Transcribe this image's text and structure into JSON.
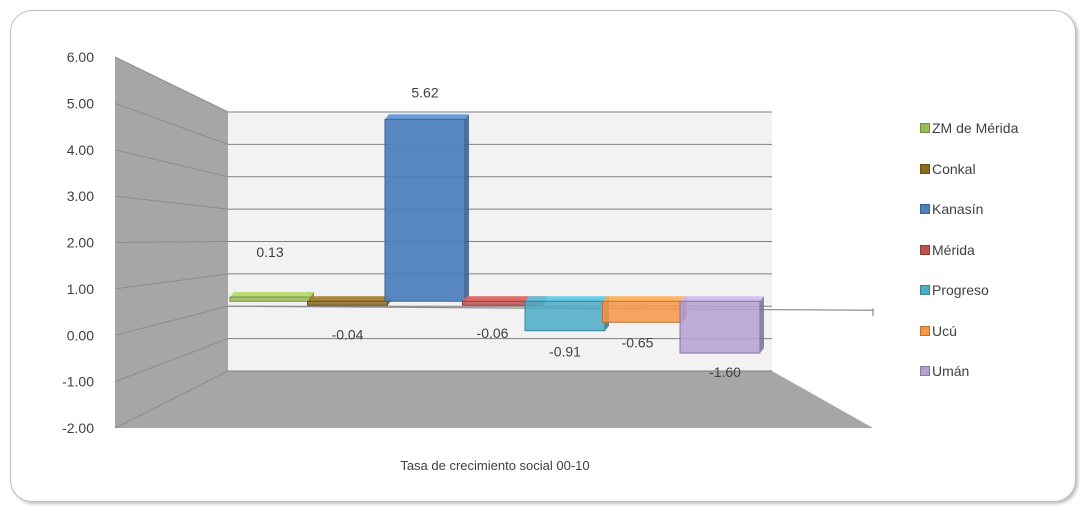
{
  "chart_data": {
    "type": "bar",
    "style": "3d-clustered-column",
    "xlabel": "Tasa de crecimiento social 00-10",
    "ylabel": "",
    "ylim": [
      -2,
      6
    ],
    "ytick_step": 1,
    "ytick_labels": [
      "6.00",
      "5.00",
      "4.00",
      "3.00",
      "2.00",
      "1.00",
      "0.00",
      "-1.00",
      "-2.00"
    ],
    "grid": true,
    "legend_position": "right",
    "series": [
      {
        "name": "ZM de Mérida",
        "value": 0.13,
        "label": "0.13",
        "color": "#9bbb59"
      },
      {
        "name": "Conkal",
        "value": -0.04,
        "label": "-0.04",
        "color": "#8c6a1e"
      },
      {
        "name": "Kanasín",
        "value": 5.62,
        "label": "5.62",
        "color": "#4f81bd"
      },
      {
        "name": "Mérida",
        "value": -0.06,
        "label": "-0.06",
        "color": "#c0504d"
      },
      {
        "name": "Progreso",
        "value": -0.91,
        "label": "-0.91",
        "color": "#4bacc6"
      },
      {
        "name": "Ucú",
        "value": -0.65,
        "label": "-0.65",
        "color": "#f79646"
      },
      {
        "name": "Umán",
        "value": -1.6,
        "label": "-1.60",
        "color": "#b4a0d2"
      }
    ]
  }
}
